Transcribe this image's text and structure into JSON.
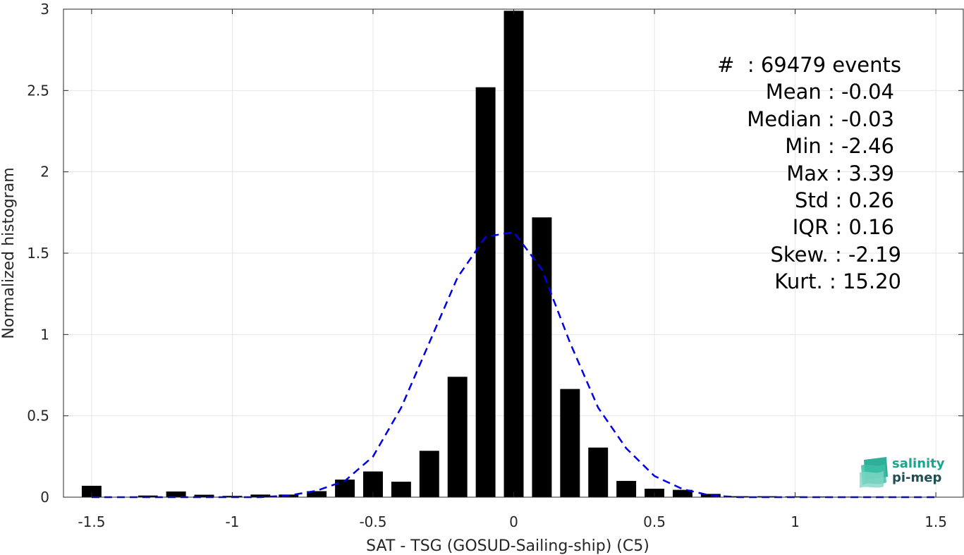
{
  "chart_data": {
    "type": "bar",
    "xlabel": "SAT - TSG (GOSUD-Sailing-ship) (C5)",
    "ylabel": "Normalized histogram",
    "xlim": [
      -1.6,
      1.6
    ],
    "ylim": [
      0,
      3
    ],
    "xticks": [
      -1.5,
      -1,
      -0.5,
      0,
      0.5,
      1,
      1.5
    ],
    "xtick_labels": [
      "-1.5",
      "-1",
      "-0.5",
      "0",
      "0.5",
      "1",
      "1.5"
    ],
    "yticks": [
      0,
      0.5,
      1,
      1.5,
      2,
      2.5,
      3
    ],
    "ytick_labels": [
      "0",
      "0.5",
      "1",
      "1.5",
      "2",
      "2.5",
      "3"
    ],
    "grid": true,
    "bar_color": "#000000",
    "bar_width": 0.07,
    "bars": {
      "x": [
        -1.5,
        -1.4,
        -1.3,
        -1.2,
        -1.1,
        -1.0,
        -0.9,
        -0.8,
        -0.7,
        -0.6,
        -0.5,
        -0.4,
        -0.3,
        -0.2,
        -0.1,
        0.0,
        0.1,
        0.2,
        0.3,
        0.4,
        0.5,
        0.6,
        0.7,
        0.8,
        0.9,
        1.0,
        1.1,
        1.2,
        1.3,
        1.4,
        1.5
      ],
      "values": [
        0.07,
        0.0,
        0.01,
        0.035,
        0.015,
        0.008,
        0.016,
        0.016,
        0.037,
        0.108,
        0.158,
        0.095,
        0.285,
        0.74,
        2.52,
        2.99,
        1.72,
        0.665,
        0.305,
        0.1,
        0.052,
        0.045,
        0.02,
        0.006,
        0.006,
        0.005,
        0.004,
        0.003,
        0.003,
        0.002,
        0.002
      ]
    },
    "fit_curve": {
      "style": "dashed",
      "color": "#0000e6",
      "x": [
        -1.5,
        -1.4,
        -1.3,
        -1.2,
        -1.1,
        -1.0,
        -0.9,
        -0.8,
        -0.7,
        -0.6,
        -0.5,
        -0.4,
        -0.3,
        -0.2,
        -0.1,
        0.0,
        0.1,
        0.2,
        0.3,
        0.4,
        0.5,
        0.6,
        0.7,
        0.8,
        0.9,
        1.0,
        1.1,
        1.2,
        1.3,
        1.4,
        1.5
      ],
      "y": [
        0.0,
        0.0,
        0.0,
        0.0,
        0.0,
        0.0,
        0.0,
        0.01,
        0.04,
        0.1,
        0.25,
        0.55,
        0.95,
        1.35,
        1.6,
        1.63,
        1.4,
        0.95,
        0.55,
        0.3,
        0.13,
        0.05,
        0.01,
        0.0,
        0.0,
        0.0,
        0.0,
        0.0,
        0.0,
        0.0,
        0.0
      ]
    }
  },
  "stats": [
    "#  : 69479 events",
    "Mean : -0.04",
    "Median : -0.03",
    "Min : -2.46",
    "Max : 3.39",
    "Std : 0.26",
    "IQR : 0.16",
    "Skew. : -2.19",
    "Kurt. : 15.20"
  ],
  "logo": {
    "line1": "salinity",
    "line2": "pi-mep",
    "color_primary": "#19a58e",
    "color_secondary": "#1f4f52"
  }
}
